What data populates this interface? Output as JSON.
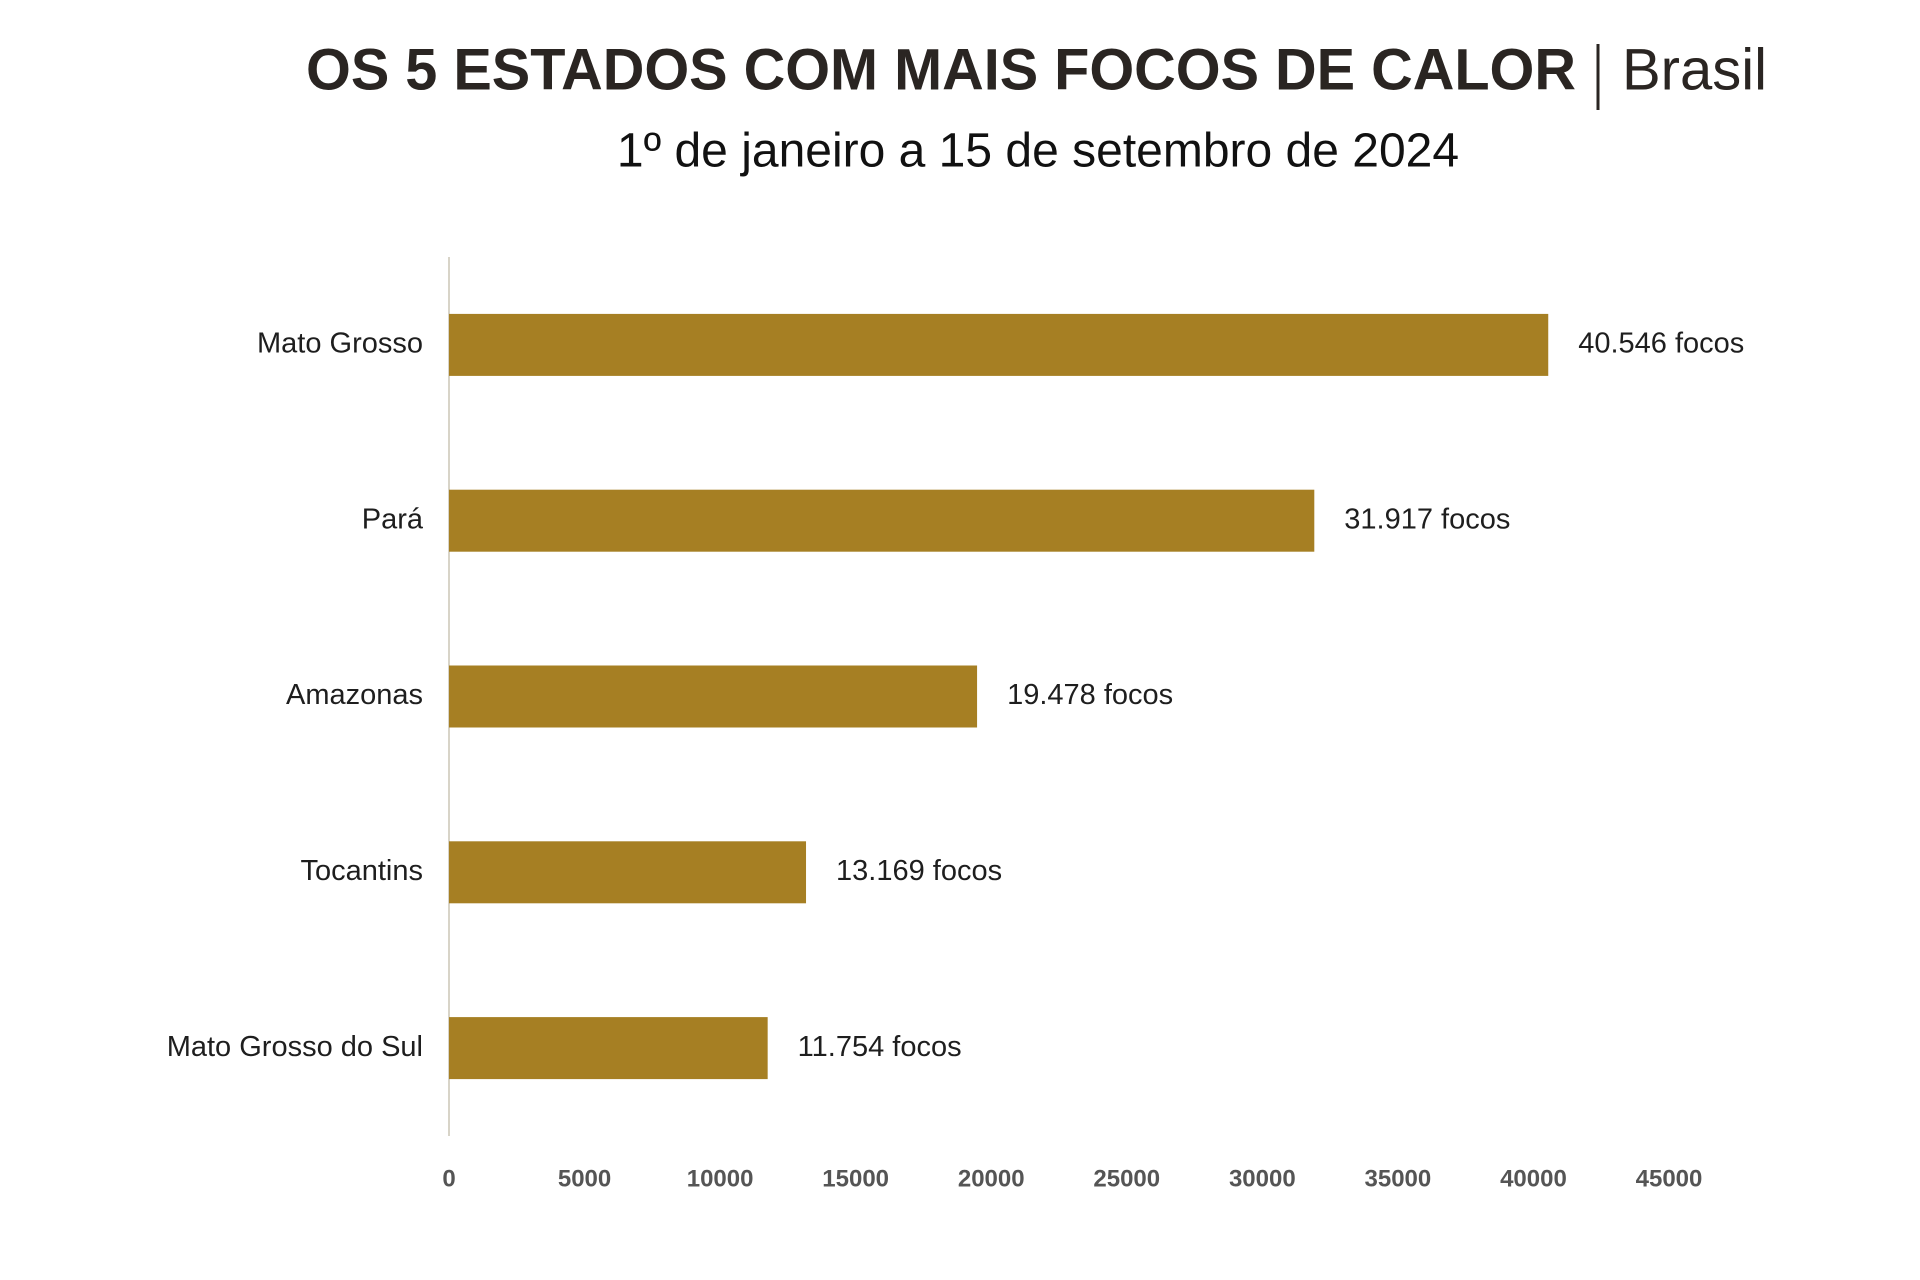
{
  "chart_data": {
    "type": "hbar",
    "title": "OS 5 ESTADOS COM MAIS FOCOS DE CALOR",
    "title_suffix": "Brasil",
    "subtitle": "1º de janeiro a 15 de setembro de 2024",
    "categories": [
      "Mato Grosso",
      "Pará",
      "Amazonas",
      "Tocantins",
      "Mato Grosso do Sul"
    ],
    "values": [
      40546,
      31917,
      19478,
      13169,
      11754
    ],
    "value_labels": [
      "40.546 focos",
      "31.917 focos",
      "19.478 focos",
      "13.169 focos",
      "11.754 focos"
    ],
    "color": "#a67f23",
    "xlim": [
      0,
      45000
    ],
    "xticks": [
      0,
      5000,
      10000,
      15000,
      20000,
      25000,
      30000,
      35000,
      40000,
      45000
    ],
    "grid": false
  }
}
